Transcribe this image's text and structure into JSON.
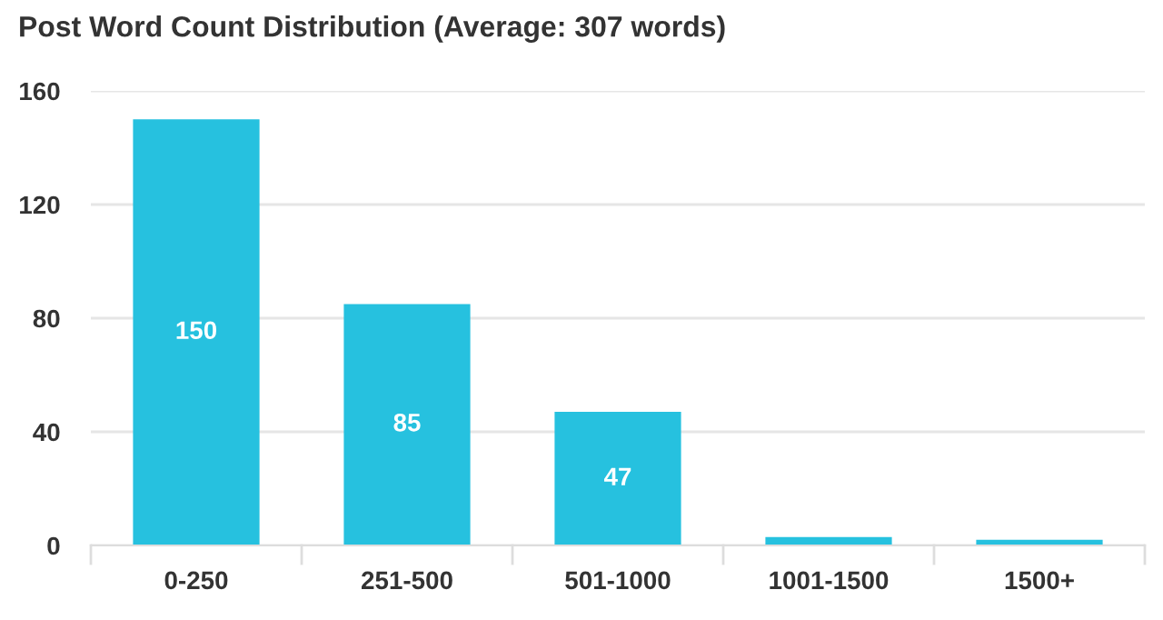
{
  "chart_data": {
    "type": "bar",
    "title": "Post Word Count Distribution (Average: 307 words)",
    "categories": [
      "0-250",
      "251-500",
      "501-1000",
      "1001-1500",
      "1500+"
    ],
    "values": [
      150,
      85,
      47,
      3,
      2
    ],
    "color": "#26c1df",
    "ylim": [
      0,
      160
    ],
    "yticks": [
      0,
      40,
      80,
      120,
      160
    ],
    "grid": "y",
    "value_labels": [
      "150",
      "85",
      "47",
      null,
      null
    ]
  }
}
